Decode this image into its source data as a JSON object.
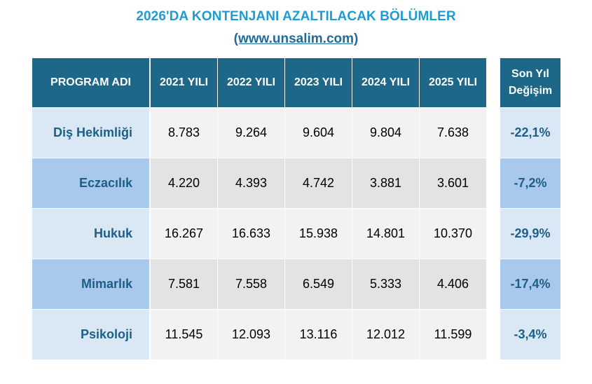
{
  "header": {
    "title": "2026'DA KONTENJANI AZALTILACAK BÖLÜMLER",
    "source": "(www.unsalim.com)"
  },
  "table": {
    "columns": {
      "program": "PROGRAM ADI",
      "y2021": "2021 YILI",
      "y2022": "2022 YILI",
      "y2023": "2023 YILI",
      "y2024": "2024 YILI",
      "y2025": "2025 YILI",
      "change_line1": "Son Yıl",
      "change_line2": "Değişim"
    },
    "rows": [
      {
        "name": "Diş Hekimliği",
        "values": [
          "8.783",
          "9.264",
          "9.604",
          "9.804",
          "7.638"
        ],
        "change": "-22,1%"
      },
      {
        "name": "Eczacılık",
        "values": [
          "4.220",
          "4.393",
          "4.742",
          "3.881",
          "3.601"
        ],
        "change": "-7,2%"
      },
      {
        "name": "Hukuk",
        "values": [
          "16.267",
          "16.633",
          "15.938",
          "14.801",
          "10.370"
        ],
        "change": "-29,9%"
      },
      {
        "name": "Mimarlık",
        "values": [
          "7.581",
          "7.558",
          "6.549",
          "5.333",
          "4.406"
        ],
        "change": "-17,4%"
      },
      {
        "name": "Psikoloji",
        "values": [
          "11.545",
          "12.093",
          "13.116",
          "12.012",
          "11.599"
        ],
        "change": "-3,4%"
      }
    ]
  },
  "colors": {
    "header_bg": "#1d6788",
    "row_light": "#dae8f6",
    "row_dark": "#a9c9ec",
    "data_light": "#f2f2f2",
    "data_dark": "#e3e3e3"
  }
}
